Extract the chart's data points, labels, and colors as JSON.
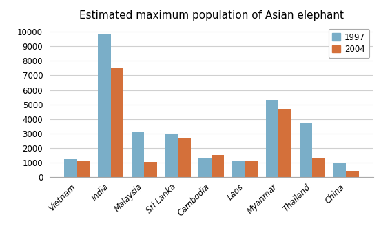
{
  "title": "Estimated maximum population of Asian elephant",
  "categories": [
    "Vietnam",
    "India",
    "Malaysia",
    "Sri Lanka",
    "Cambodia",
    "Laos",
    "Myanmar",
    "Thailand",
    "China"
  ],
  "values_1997": [
    1250,
    9800,
    3100,
    3000,
    1300,
    1150,
    5300,
    3700,
    1000
  ],
  "values_2004": [
    1150,
    7500,
    1050,
    2700,
    1500,
    1150,
    4700,
    1300,
    450
  ],
  "color_1997": "#7aaec8",
  "color_2004": "#d4703a",
  "legend_labels": [
    "1997",
    "2004"
  ],
  "ylim": [
    0,
    10500
  ],
  "yticks": [
    0,
    1000,
    2000,
    3000,
    4000,
    5000,
    6000,
    7000,
    8000,
    9000,
    10000
  ],
  "bar_width": 0.38,
  "background_color": "#ffffff",
  "grid_color": "#d0d0d0"
}
